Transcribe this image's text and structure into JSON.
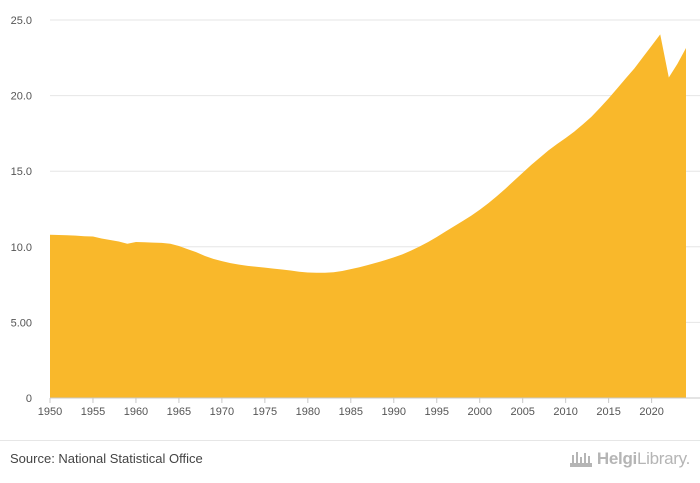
{
  "chart_data": {
    "type": "area",
    "title": "",
    "xlabel": "",
    "ylabel": "",
    "color": "#f9b82b",
    "grid": true,
    "legend": "none",
    "xlim": [
      1950,
      2024
    ],
    "ylim": [
      0,
      25
    ],
    "x_ticks": [
      1950,
      1955,
      1960,
      1965,
      1970,
      1975,
      1980,
      1985,
      1990,
      1995,
      2000,
      2005,
      2010,
      2015,
      2020
    ],
    "x_tick_labels": [
      "1950",
      "1955",
      "1960",
      "1965",
      "1970",
      "1975",
      "1980",
      "1985",
      "1990",
      "1995",
      "2000",
      "2005",
      "2010",
      "2015",
      "2020"
    ],
    "y_ticks": [
      0,
      5,
      10,
      15,
      20,
      25
    ],
    "y_tick_labels": [
      "0",
      "5.00",
      "10.0",
      "15.0",
      "20.0",
      "25.0"
    ],
    "x": [
      1950,
      1951,
      1952,
      1953,
      1954,
      1955,
      1956,
      1957,
      1958,
      1959,
      1960,
      1961,
      1962,
      1963,
      1964,
      1965,
      1966,
      1967,
      1968,
      1969,
      1970,
      1971,
      1972,
      1973,
      1974,
      1975,
      1976,
      1977,
      1978,
      1979,
      1980,
      1981,
      1982,
      1983,
      1984,
      1985,
      1986,
      1987,
      1988,
      1989,
      1990,
      1991,
      1992,
      1993,
      1994,
      1995,
      1996,
      1997,
      1998,
      1999,
      2000,
      2001,
      2002,
      2003,
      2004,
      2005,
      2006,
      2007,
      2008,
      2009,
      2010,
      2011,
      2012,
      2013,
      2014,
      2015,
      2016,
      2017,
      2018,
      2019,
      2020,
      2021,
      2022,
      2023,
      2024
    ],
    "values": [
      10.8,
      10.78,
      10.76,
      10.74,
      10.7,
      10.68,
      10.55,
      10.45,
      10.35,
      10.2,
      10.32,
      10.3,
      10.28,
      10.26,
      10.2,
      10.05,
      9.85,
      9.65,
      9.4,
      9.2,
      9.05,
      8.92,
      8.82,
      8.74,
      8.68,
      8.62,
      8.56,
      8.5,
      8.43,
      8.35,
      8.3,
      8.28,
      8.28,
      8.32,
      8.4,
      8.52,
      8.65,
      8.8,
      8.95,
      9.12,
      9.3,
      9.5,
      9.75,
      10.02,
      10.32,
      10.65,
      11.0,
      11.35,
      11.7,
      12.05,
      12.45,
      12.88,
      13.35,
      13.85,
      14.38,
      14.9,
      15.42,
      15.9,
      16.38,
      16.8,
      17.2,
      17.62,
      18.1,
      18.6,
      19.2,
      19.82,
      20.48,
      21.15,
      21.8,
      22.55,
      23.3,
      24.05,
      21.2,
      22.1,
      23.15
    ]
  },
  "footer": {
    "source": "Source: National Statistical Office",
    "brand_bold": "Helgi",
    "brand_light": "Library."
  }
}
